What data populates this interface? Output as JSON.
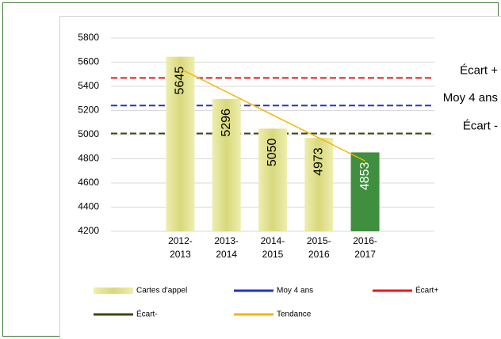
{
  "chart_data": {
    "type": "bar",
    "categories": [
      null,
      "2012-2013",
      "2013-2014",
      "2014-2015",
      "2015-2016",
      "2016-2017",
      null
    ],
    "series": [
      {
        "name": "Cartes d'appel",
        "type": "bar",
        "color": "#dcdc84",
        "colors": [
          null,
          "#dcdc84",
          "#dcdc84",
          "#dcdc84",
          "#dcdc84",
          "#3f8f3f",
          null
        ],
        "values": [
          null,
          5645,
          5296,
          5050,
          4973,
          4853,
          null
        ]
      },
      {
        "name": "Tendance",
        "type": "line",
        "color": "#f5b400",
        "values": [
          null,
          5545,
          5354,
          5163,
          4973,
          4782,
          null
        ]
      }
    ],
    "reference_lines": [
      {
        "name": "Moy 4 ans",
        "label": "Moy 4 ans",
        "value": 5241,
        "color": "#2233c8"
      },
      {
        "name": "Écart+",
        "label": "Écart +",
        "value": 5470,
        "color": "#e8171f"
      },
      {
        "name": "Écart-",
        "label": "Écart -",
        "value": 5010,
        "color": "#3a4a14"
      }
    ],
    "ylim": [
      4200,
      5800
    ],
    "yticks": [
      4200,
      4400,
      4600,
      4800,
      5000,
      5200,
      5400,
      5600,
      5800
    ],
    "grid": true
  }
}
